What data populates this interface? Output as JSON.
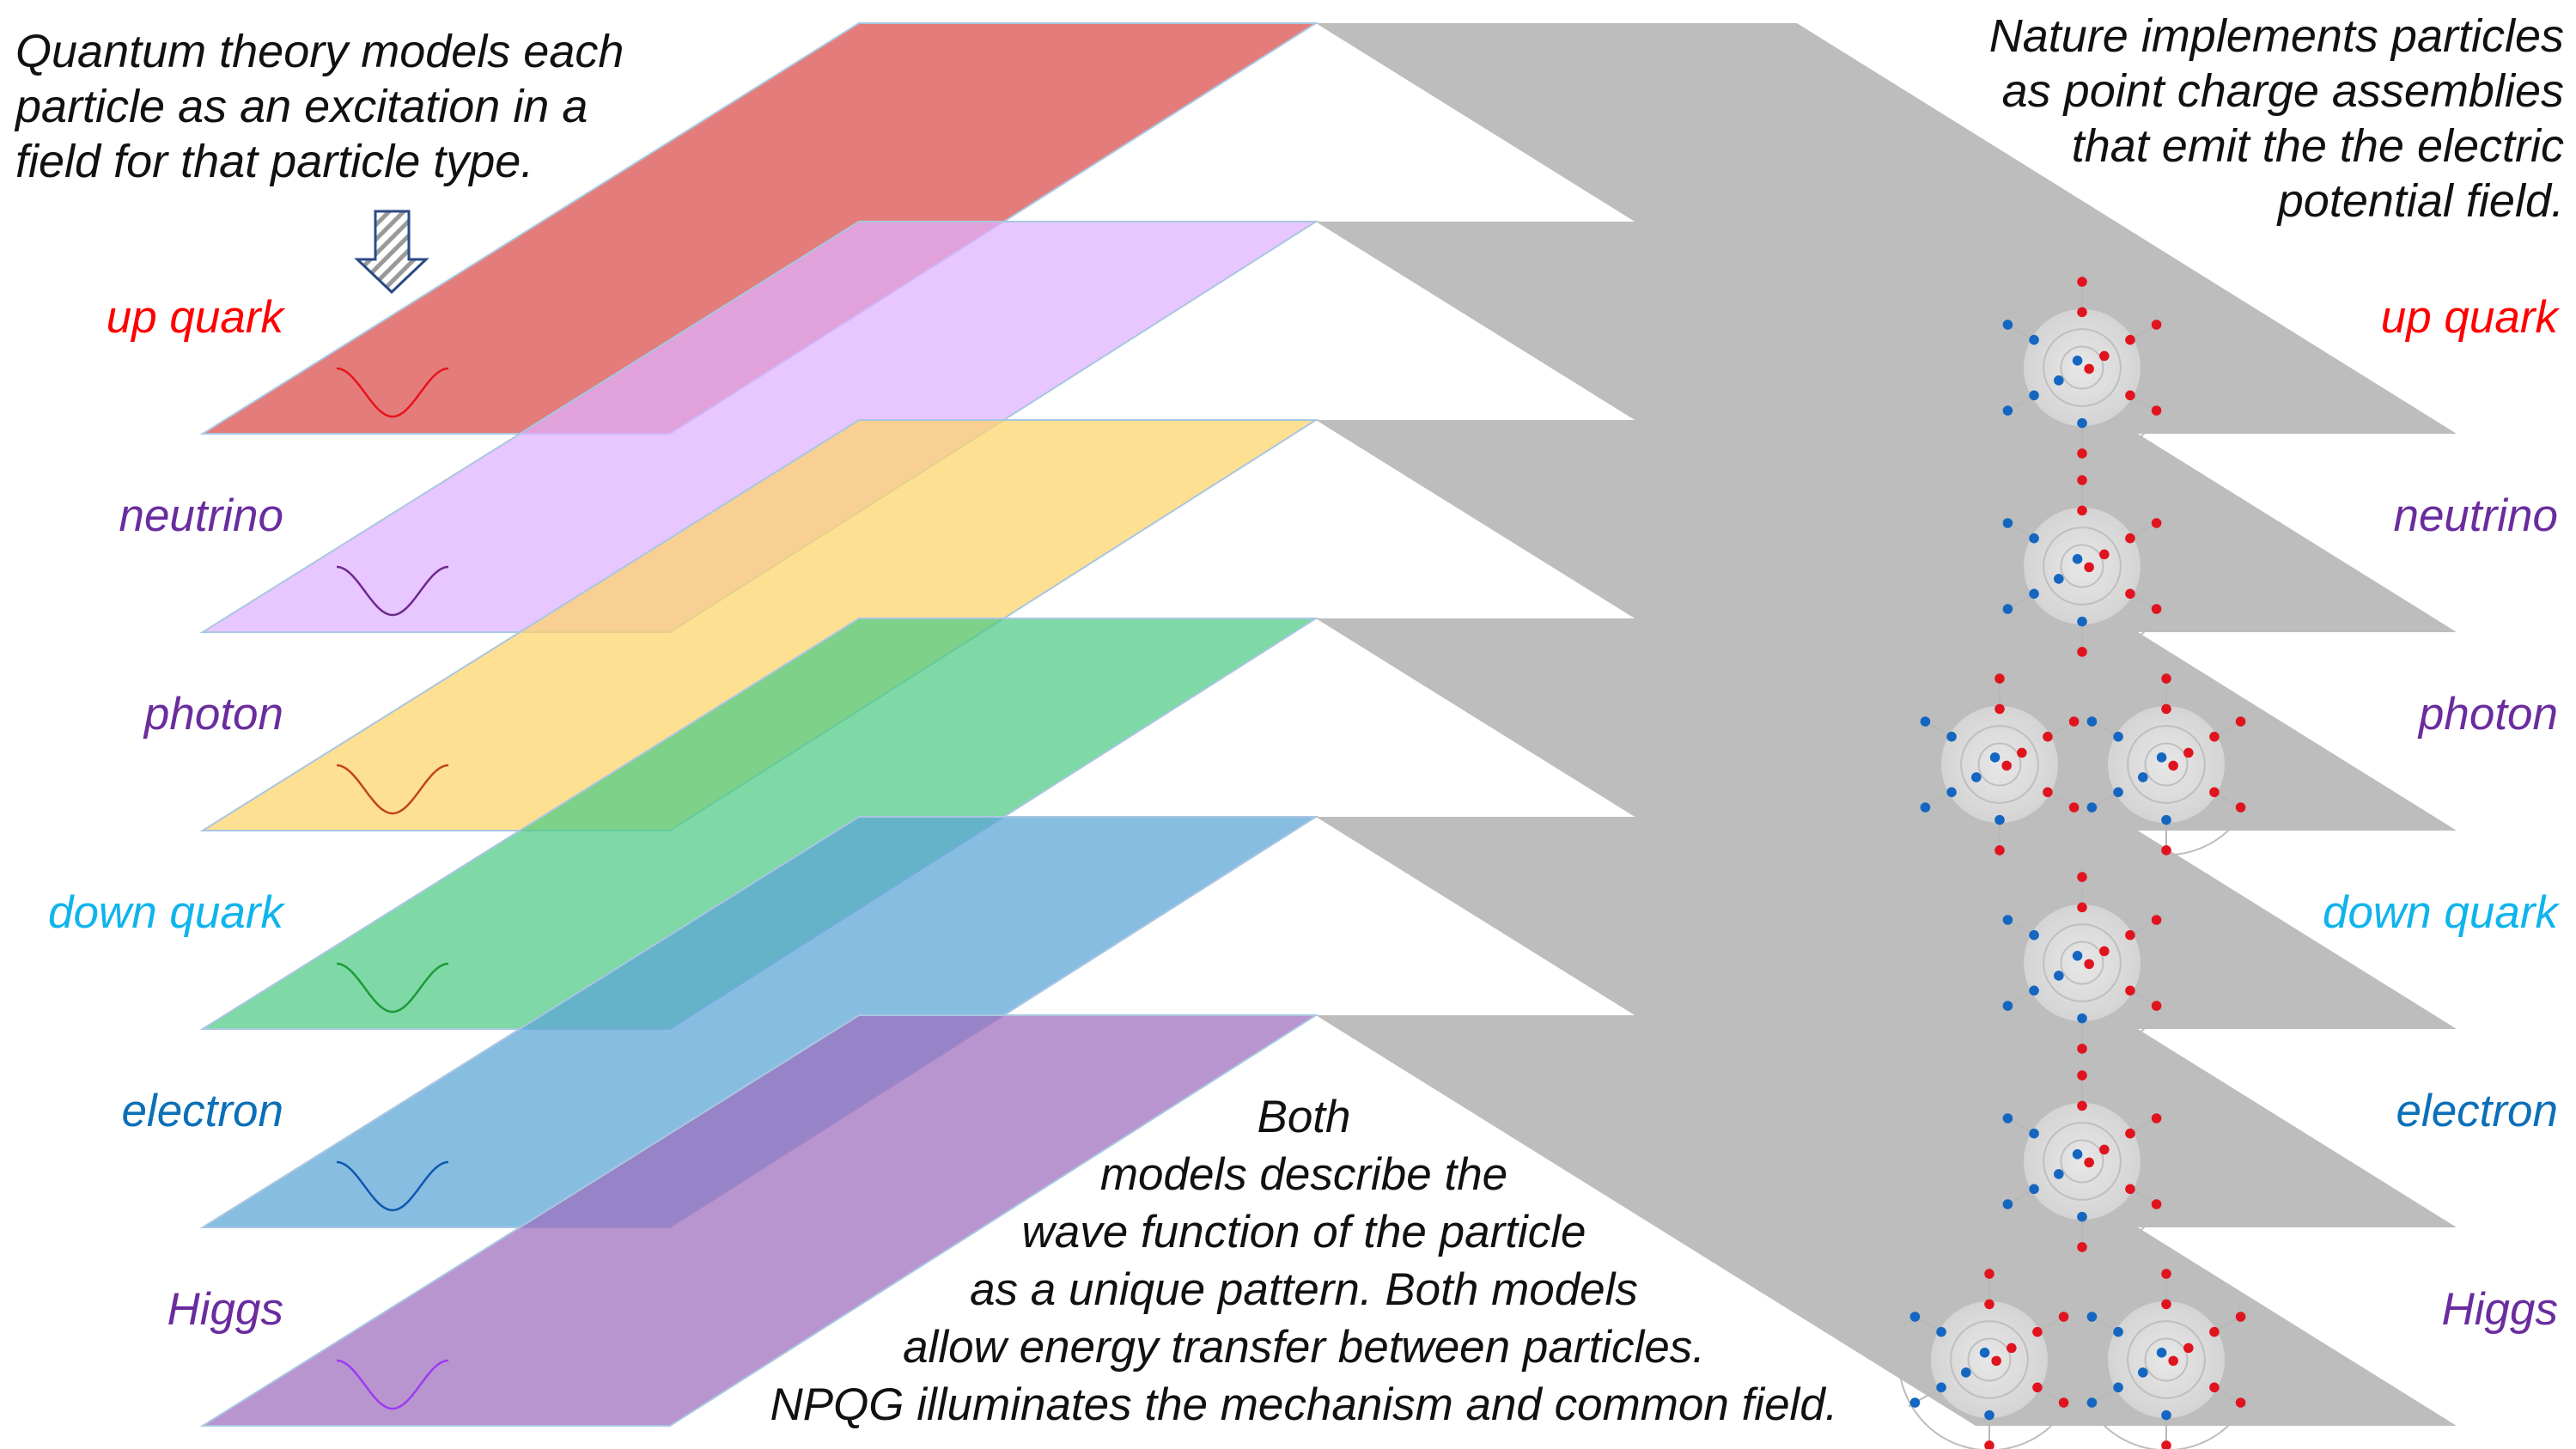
{
  "left_caption": [
    "Quantum theory models each",
    "particle as an excitation in a",
    "field for that particle type."
  ],
  "right_caption": [
    "Nature implements particles",
    "as point charge assemblies",
    "that emit the the electric",
    "potential field."
  ],
  "bottom_caption": [
    "Both",
    "models describe the",
    "wave function of the particle",
    "as a unique pattern. Both models",
    "allow energy transfer between particles.",
    "NPQG illuminates the mechanism and common field."
  ],
  "layers": [
    {
      "label": "up quark",
      "label_color": "#ff0000",
      "plane_color": "#d94a4a",
      "wave_color": "#e8141b",
      "assembly": "single"
    },
    {
      "label": "neutrino",
      "label_color": "#6a2c9e",
      "plane_color": "#dfb0ff",
      "wave_color": "#6b2a8c",
      "assembly": "single"
    },
    {
      "label": "photon",
      "label_color": "#6a2c9e",
      "plane_color": "#fed46a",
      "wave_color": "#c0451c",
      "assembly": "pair"
    },
    {
      "label": "down quark",
      "label_color": "#10b4ec",
      "plane_color": "#4ccb84",
      "wave_color": "#1e9a3a",
      "assembly": "single"
    },
    {
      "label": "electron",
      "label_color": "#0c6fb8",
      "plane_color": "#5aa3d7",
      "wave_color": "#0c57b0",
      "assembly": "single"
    },
    {
      "label": "Higgs",
      "label_color": "#6a2c9e",
      "plane_color": "#9d6cbd",
      "wave_color": "#9a3cf0",
      "assembly": "pair"
    }
  ],
  "colors": {
    "grey_plane": "#bdbdbd",
    "positive_charge": "#e0141e",
    "negative_charge": "#1466c0",
    "arrow_stroke": "#2b4a85"
  },
  "icons": {
    "arrow": "striped-down-arrow-icon",
    "wave": "sine-wave-icon",
    "assembly": "point-charge-assembly-icon"
  }
}
